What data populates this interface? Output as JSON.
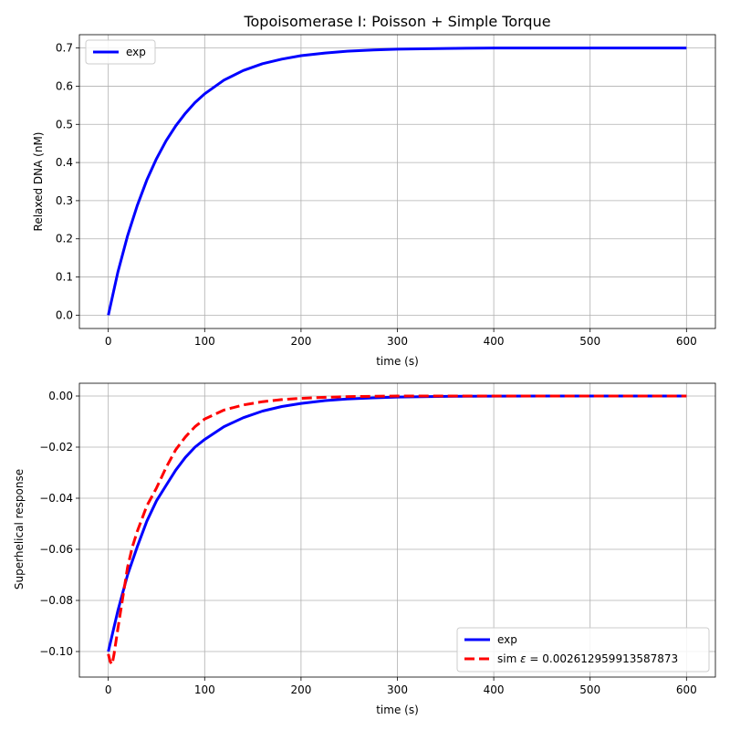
{
  "chart_data": [
    {
      "type": "line",
      "title": "Topoisomerase I: Poisson + Simple Torque",
      "xlabel": "time (s)",
      "ylabel": "Relaxed DNA (nM)",
      "xlim": [
        -30,
        630
      ],
      "ylim": [
        -0.035,
        0.735
      ],
      "xticks": [
        0,
        100,
        200,
        300,
        400,
        500,
        600
      ],
      "yticks": [
        0.0,
        0.1,
        0.2,
        0.3,
        0.4,
        0.5,
        0.6,
        0.7
      ],
      "ytick_decimals": 1,
      "grid": true,
      "legend": "top-left",
      "series": [
        {
          "name": "exp",
          "color": "#0000ff",
          "dash": "solid",
          "x": [
            0,
            10,
            20,
            30,
            40,
            50,
            60,
            70,
            80,
            90,
            100,
            120,
            140,
            160,
            180,
            200,
            225,
            250,
            275,
            300,
            350,
            400,
            450,
            500,
            550,
            600
          ],
          "y": [
            0.0,
            0.113,
            0.208,
            0.287,
            0.354,
            0.41,
            0.457,
            0.496,
            0.529,
            0.557,
            0.58,
            0.616,
            0.641,
            0.659,
            0.671,
            0.68,
            0.687,
            0.692,
            0.695,
            0.697,
            0.699,
            0.7,
            0.7,
            0.7,
            0.7,
            0.7
          ]
        }
      ]
    },
    {
      "type": "line",
      "title": "",
      "xlabel": "time (s)",
      "ylabel": "Superhelical response",
      "xlim": [
        -30,
        630
      ],
      "ylim": [
        -0.11,
        0.005
      ],
      "xticks": [
        0,
        100,
        200,
        300,
        400,
        500,
        600
      ],
      "yticks": [
        -0.1,
        -0.08,
        -0.06,
        -0.04,
        -0.02,
        0.0
      ],
      "ytick_decimals": 2,
      "grid": true,
      "legend": "bottom-right",
      "series": [
        {
          "name": "exp",
          "color": "#0000ff",
          "dash": "solid",
          "x": [
            0,
            10,
            20,
            30,
            40,
            50,
            60,
            70,
            80,
            90,
            100,
            120,
            140,
            160,
            180,
            200,
            225,
            250,
            275,
            300,
            350,
            400,
            450,
            500,
            550,
            600
          ],
          "y": [
            -0.1,
            -0.084,
            -0.07,
            -0.059,
            -0.049,
            -0.041,
            -0.035,
            -0.029,
            -0.024,
            -0.02,
            -0.017,
            -0.012,
            -0.0085,
            -0.0059,
            -0.0041,
            -0.0029,
            -0.0018,
            -0.0011,
            -0.0007,
            -0.0004,
            -0.00015,
            -5e-05,
            0.0,
            0.0,
            0.0,
            0.0
          ]
        },
        {
          "name": "sim $\\varepsilon = 0.002612959913587873",
          "legend_prefix": "sim ",
          "legend_math": "ε",
          "legend_suffix": " = 0.002612959913587873",
          "color": "#ff0000",
          "dash": "dashed",
          "x": [
            0,
            2,
            4,
            6,
            10,
            15,
            20,
            25,
            30,
            40,
            50,
            60,
            70,
            80,
            90,
            100,
            120,
            140,
            160,
            180,
            200,
            225,
            250,
            300,
            350,
            400,
            500,
            600
          ],
          "y": [
            -0.101,
            -0.104,
            -0.105,
            -0.101,
            -0.091,
            -0.079,
            -0.067,
            -0.059,
            -0.053,
            -0.043,
            -0.036,
            -0.028,
            -0.021,
            -0.016,
            -0.012,
            -0.009,
            -0.0055,
            -0.0035,
            -0.0022,
            -0.0014,
            -0.0009,
            -0.0005,
            -0.0002,
            0.0,
            0.0,
            0.0,
            0.0,
            0.0
          ]
        }
      ]
    }
  ]
}
